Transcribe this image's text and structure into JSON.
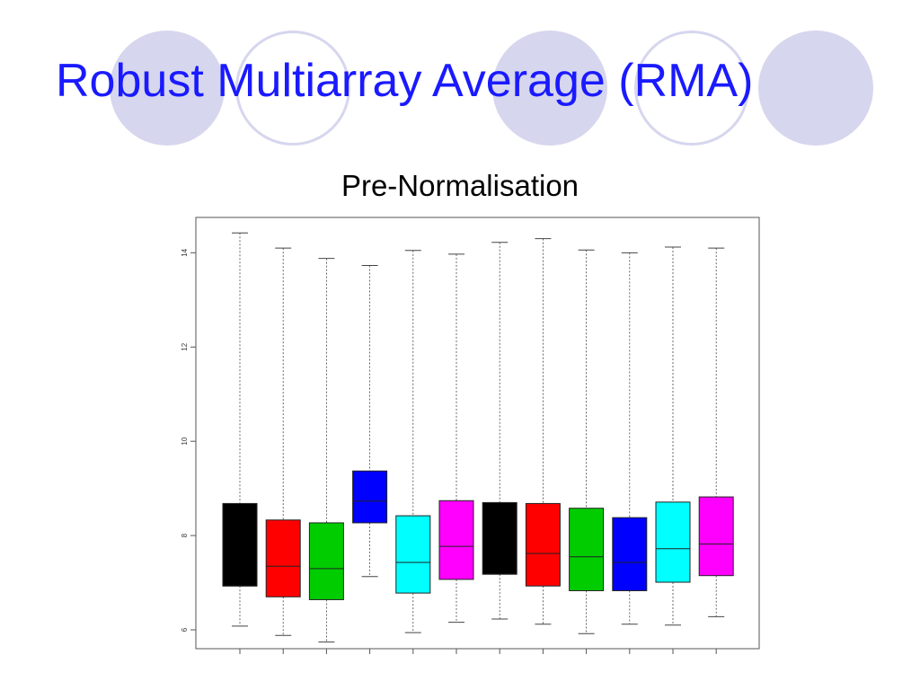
{
  "slide": {
    "title": "Robust Multiarray Average (RMA)"
  },
  "chart_data": {
    "type": "box",
    "title": "Pre-Normalisation",
    "xlabel": "",
    "ylabel": "",
    "ylim": [
      5.6,
      14.75
    ],
    "yticks": [
      6,
      8,
      10,
      12,
      14
    ],
    "grid": false,
    "series": [
      {
        "color": "#000000",
        "whisker_low": 6.08,
        "q1": 6.93,
        "median": 6.93,
        "q3": 8.68,
        "whisker_high": 14.42
      },
      {
        "color": "#ff0000",
        "whisker_low": 5.88,
        "q1": 6.7,
        "median": 7.35,
        "q3": 8.33,
        "whisker_high": 14.1
      },
      {
        "color": "#00cc00",
        "whisker_low": 5.74,
        "q1": 6.64,
        "median": 7.3,
        "q3": 8.27,
        "whisker_high": 13.88
      },
      {
        "color": "#0000ff",
        "whisker_low": 7.13,
        "q1": 8.27,
        "median": 8.73,
        "q3": 9.37,
        "whisker_high": 13.73
      },
      {
        "color": "#00ffff",
        "whisker_low": 5.94,
        "q1": 6.78,
        "median": 7.43,
        "q3": 8.42,
        "whisker_high": 14.05
      },
      {
        "color": "#ff00ff",
        "whisker_low": 6.16,
        "q1": 7.07,
        "median": 7.77,
        "q3": 8.74,
        "whisker_high": 13.97
      },
      {
        "color": "#000000",
        "whisker_low": 6.23,
        "q1": 7.18,
        "median": 7.18,
        "q3": 8.7,
        "whisker_high": 14.22
      },
      {
        "color": "#ff0000",
        "whisker_low": 6.12,
        "q1": 6.93,
        "median": 7.62,
        "q3": 8.68,
        "whisker_high": 14.3
      },
      {
        "color": "#00cc00",
        "whisker_low": 5.92,
        "q1": 6.83,
        "median": 7.55,
        "q3": 8.58,
        "whisker_high": 14.06
      },
      {
        "color": "#0000ff",
        "whisker_low": 6.12,
        "q1": 6.83,
        "median": 7.43,
        "q3": 8.38,
        "whisker_high": 14.0
      },
      {
        "color": "#00ffff",
        "whisker_low": 6.1,
        "q1": 7.01,
        "median": 7.72,
        "q3": 8.71,
        "whisker_high": 14.12
      },
      {
        "color": "#ff00ff",
        "whisker_low": 6.28,
        "q1": 7.15,
        "median": 7.82,
        "q3": 8.82,
        "whisker_high": 14.1
      }
    ]
  }
}
